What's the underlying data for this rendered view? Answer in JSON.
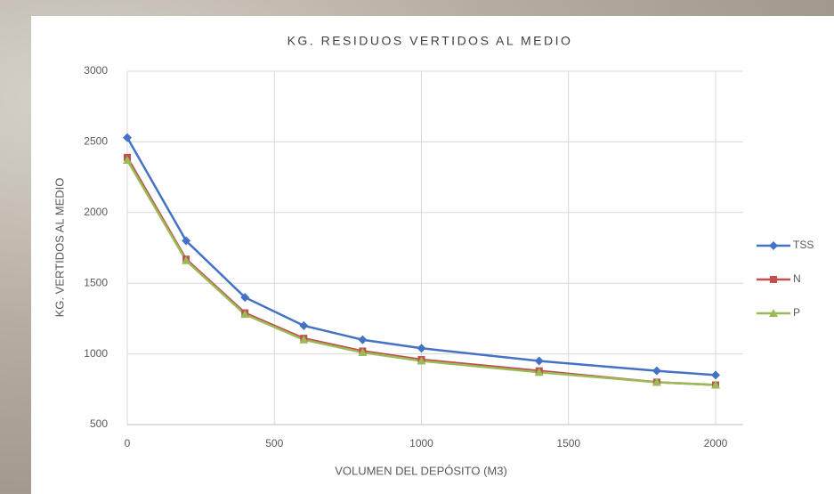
{
  "chart_data": {
    "type": "line",
    "title": "KG. RESIDUOS VERTIDOS AL MEDIO",
    "x_label": "VOLUMEN DEL DEPÓSITO (M3)",
    "y_label": "KG. VERTIDOS AL MEDIO",
    "x": [
      0,
      200,
      400,
      600,
      800,
      1000,
      1400,
      1800,
      2000
    ],
    "series": [
      {
        "name": "TSS",
        "color": "#4472c4",
        "marker": "diamond",
        "values": [
          2530,
          1800,
          1400,
          1200,
          1100,
          1040,
          950,
          880,
          850
        ]
      },
      {
        "name": "N",
        "color": "#c0504d",
        "marker": "square",
        "values": [
          2390,
          1670,
          1290,
          1110,
          1020,
          960,
          880,
          800,
          780
        ]
      },
      {
        "name": "P",
        "color": "#9bbb59",
        "marker": "triangle",
        "values": [
          2370,
          1660,
          1280,
          1100,
          1010,
          950,
          870,
          800,
          780
        ]
      }
    ],
    "xlim": [
      0,
      2000
    ],
    "xticks": [
      0,
      500,
      1000,
      1500,
      2000
    ],
    "ylim": [
      500,
      3000
    ],
    "yticks": [
      500,
      1000,
      1500,
      2000,
      2500,
      3000
    ],
    "grid": true,
    "legend": "right"
  }
}
